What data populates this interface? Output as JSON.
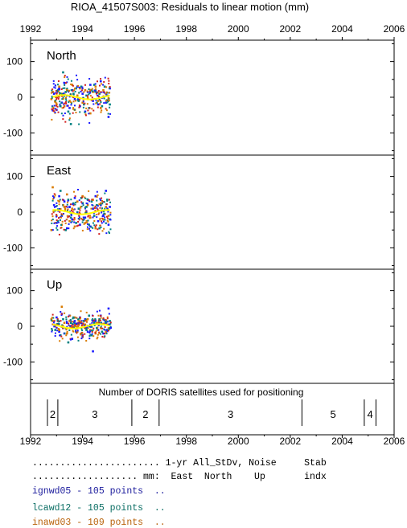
{
  "title": "RIOA_41507S003: Residuals to linear motion (mm)",
  "x_ticks": [
    "1992",
    "1994",
    "1996",
    "1998",
    "2000",
    "2002",
    "2004",
    "2006"
  ],
  "y_ticks": [
    "100",
    "0",
    "-100"
  ],
  "panels": [
    {
      "label": "North"
    },
    {
      "label": "East"
    },
    {
      "label": "Up"
    }
  ],
  "satellite_panel": {
    "title": "Number of DORIS satellites used for positioning",
    "segments": [
      {
        "from": 1992.65,
        "to": 1993.05,
        "count": "2"
      },
      {
        "from": 1993.05,
        "to": 1995.9,
        "count": "3"
      },
      {
        "from": 1995.9,
        "to": 1996.95,
        "count": "2"
      },
      {
        "from": 1996.95,
        "to": 2002.45,
        "count": "3"
      },
      {
        "from": 2002.45,
        "to": 2004.85,
        "count": "5"
      },
      {
        "from": 2004.85,
        "to": 2005.3,
        "count": "4"
      }
    ]
  },
  "legend": {
    "header1": "....................... 1-yr All_StDv, Noise     Stab",
    "header2": "................... mm:  East  North    Up       indx",
    "rows": [
      {
        "text": "ignwd05 - 105 points  ..",
        "color": "#1a1a9c"
      },
      {
        "text": "lcawd12 - 105 points  ..",
        "color": "#0b6e64"
      },
      {
        "text": "inawd03 - 109 points  ..",
        "color": "#b8620a"
      }
    ]
  },
  "colors": {
    "ignwd05": "#1a1aff",
    "lcawd12": "#008080",
    "inawd03": "#d97a00",
    "extra_dots": "#d2201f",
    "smooth_line": "#ffff00"
  },
  "chart_data": {
    "type": "scatter",
    "xlim": [
      1992,
      2006
    ],
    "ylim": [
      -160,
      160
    ],
    "data_span": [
      1992.8,
      1995.1
    ],
    "panels": [
      {
        "name": "North",
        "spread_mm": 25,
        "series": [
          {
            "name": "ignwd05",
            "points": [
              [
                1992.9,
                10
              ],
              [
                1993.0,
                -35
              ],
              [
                1993.1,
                25
              ],
              [
                1993.2,
                -15
              ],
              [
                1993.3,
                40
              ],
              [
                1993.4,
                5
              ],
              [
                1993.5,
                -30
              ],
              [
                1993.6,
                20
              ],
              [
                1993.7,
                -5
              ],
              [
                1993.8,
                30
              ],
              [
                1993.9,
                -25
              ],
              [
                1994.0,
                10
              ],
              [
                1994.1,
                -40
              ],
              [
                1994.2,
                15
              ],
              [
                1994.3,
                35
              ],
              [
                1994.4,
                -10
              ],
              [
                1994.5,
                20
              ],
              [
                1994.6,
                -20
              ],
              [
                1994.7,
                45
              ],
              [
                1994.8,
                0
              ],
              [
                1994.9,
                -15
              ],
              [
                1995.0,
                -55
              ],
              [
                1995.05,
                25
              ]
            ]
          },
          {
            "name": "lcawd12",
            "points": [
              [
                1992.95,
                -10
              ],
              [
                1993.05,
                20
              ],
              [
                1993.15,
                -25
              ],
              [
                1993.25,
                70
              ],
              [
                1993.35,
                15
              ],
              [
                1993.45,
                -40
              ],
              [
                1993.55,
                -75
              ],
              [
                1993.65,
                10
              ],
              [
                1993.75,
                25
              ],
              [
                1993.85,
                -10
              ],
              [
                1993.95,
                30
              ],
              [
                1994.05,
                -20
              ],
              [
                1994.15,
                5
              ],
              [
                1994.25,
                -30
              ],
              [
                1994.35,
                20
              ],
              [
                1994.45,
                35
              ],
              [
                1994.55,
                -15
              ],
              [
                1994.65,
                10
              ],
              [
                1994.75,
                -25
              ],
              [
                1994.85,
                30
              ],
              [
                1994.95,
                5
              ],
              [
                1995.05,
                -20
              ]
            ]
          },
          {
            "name": "inawd03",
            "points": [
              [
                1992.8,
                -5
              ],
              [
                1992.85,
                15
              ],
              [
                1993.0,
                -20
              ],
              [
                1993.1,
                30
              ],
              [
                1993.2,
                10
              ],
              [
                1993.3,
                -25
              ],
              [
                1993.4,
                20
              ],
              [
                1993.5,
                -10
              ],
              [
                1993.6,
                35
              ],
              [
                1993.7,
                -35
              ],
              [
                1993.8,
                5
              ],
              [
                1993.9,
                25
              ],
              [
                1994.0,
                -15
              ],
              [
                1994.1,
                20
              ],
              [
                1994.2,
                -5
              ],
              [
                1994.3,
                -45
              ],
              [
                1994.4,
                15
              ],
              [
                1994.5,
                30
              ],
              [
                1994.6,
                -10
              ],
              [
                1994.7,
                -30
              ],
              [
                1994.8,
                20
              ],
              [
                1994.9,
                10
              ],
              [
                1995.0,
                -5
              ]
            ]
          }
        ]
      },
      {
        "name": "East",
        "spread_mm": 28,
        "series": [
          {
            "name": "ignwd05",
            "points": [
              [
                1992.9,
                20
              ],
              [
                1993.0,
                -30
              ],
              [
                1993.1,
                45
              ],
              [
                1993.2,
                -10
              ],
              [
                1993.3,
                30
              ],
              [
                1993.4,
                -45
              ],
              [
                1993.5,
                15
              ],
              [
                1993.6,
                -20
              ],
              [
                1993.7,
                40
              ],
              [
                1993.8,
                0
              ],
              [
                1993.9,
                -35
              ],
              [
                1994.0,
                25
              ],
              [
                1994.1,
                -15
              ],
              [
                1994.2,
                35
              ],
              [
                1994.3,
                -40
              ],
              [
                1994.4,
                10
              ],
              [
                1994.5,
                45
              ],
              [
                1994.6,
                -25
              ],
              [
                1994.7,
                20
              ],
              [
                1994.8,
                -10
              ],
              [
                1994.9,
                60
              ],
              [
                1995.0,
                -35
              ],
              [
                1995.05,
                15
              ]
            ]
          },
          {
            "name": "lcawd12",
            "points": [
              [
                1992.95,
                5
              ],
              [
                1993.05,
                -25
              ],
              [
                1993.15,
                60
              ],
              [
                1993.25,
                20
              ],
              [
                1993.35,
                -50
              ],
              [
                1993.45,
                35
              ],
              [
                1993.55,
                -15
              ],
              [
                1993.65,
                25
              ],
              [
                1993.75,
                -30
              ],
              [
                1993.85,
                10
              ],
              [
                1993.95,
                40
              ],
              [
                1994.05,
                -20
              ],
              [
                1994.15,
                15
              ],
              [
                1994.25,
                -35
              ],
              [
                1994.35,
                30
              ],
              [
                1994.45,
                -10
              ],
              [
                1994.55,
                20
              ],
              [
                1994.65,
                -45
              ],
              [
                1994.75,
                25
              ],
              [
                1994.85,
                -5
              ],
              [
                1994.95,
                35
              ],
              [
                1995.05,
                -20
              ]
            ]
          },
          {
            "name": "inawd03",
            "points": [
              [
                1992.8,
                -50
              ],
              [
                1992.85,
                70
              ],
              [
                1993.0,
                -10
              ],
              [
                1993.1,
                30
              ],
              [
                1993.2,
                -35
              ],
              [
                1993.3,
                15
              ],
              [
                1993.4,
                50
              ],
              [
                1993.5,
                -25
              ],
              [
                1993.6,
                10
              ],
              [
                1993.7,
                -40
              ],
              [
                1993.8,
                30
              ],
              [
                1993.9,
                -5
              ],
              [
                1994.0,
                45
              ],
              [
                1994.1,
                -30
              ],
              [
                1994.2,
                20
              ],
              [
                1994.3,
                -15
              ],
              [
                1994.4,
                35
              ],
              [
                1994.5,
                -45
              ],
              [
                1994.6,
                5
              ],
              [
                1994.7,
                25
              ],
              [
                1994.8,
                -20
              ],
              [
                1994.9,
                15
              ],
              [
                1995.0,
                -10
              ]
            ]
          }
        ]
      },
      {
        "name": "Up",
        "spread_mm": 18,
        "series": [
          {
            "name": "ignwd05",
            "points": [
              [
                1992.9,
                5
              ],
              [
                1993.0,
                25
              ],
              [
                1993.1,
                -15
              ],
              [
                1993.2,
                35
              ],
              [
                1993.3,
                -20
              ],
              [
                1993.4,
                10
              ],
              [
                1993.5,
                30
              ],
              [
                1993.6,
                -35
              ],
              [
                1993.7,
                15
              ],
              [
                1993.8,
                -5
              ],
              [
                1993.9,
                25
              ],
              [
                1994.0,
                -25
              ],
              [
                1994.1,
                20
              ],
              [
                1994.2,
                -15
              ],
              [
                1994.3,
                5
              ],
              [
                1994.4,
                -70
              ],
              [
                1994.5,
                15
              ],
              [
                1994.6,
                -10
              ],
              [
                1994.7,
                30
              ],
              [
                1994.8,
                -20
              ],
              [
                1994.9,
                10
              ],
              [
                1995.0,
                50
              ],
              [
                1995.05,
                -5
              ]
            ]
          },
          {
            "name": "lcawd12",
            "points": [
              [
                1992.95,
                -10
              ],
              [
                1993.05,
                15
              ],
              [
                1993.15,
                -25
              ],
              [
                1993.25,
                20
              ],
              [
                1993.35,
                -5
              ],
              [
                1993.45,
                -45
              ],
              [
                1993.55,
                10
              ],
              [
                1993.65,
                25
              ],
              [
                1993.75,
                -15
              ],
              [
                1993.85,
                5
              ],
              [
                1993.95,
                -20
              ],
              [
                1994.05,
                15
              ],
              [
                1994.15,
                -10
              ],
              [
                1994.25,
                30
              ],
              [
                1994.35,
                -25
              ],
              [
                1994.45,
                10
              ],
              [
                1994.55,
                -5
              ],
              [
                1994.65,
                20
              ],
              [
                1994.75,
                -15
              ],
              [
                1994.85,
                5
              ],
              [
                1994.95,
                -10
              ],
              [
                1995.05,
                15
              ]
            ]
          },
          {
            "name": "inawd03",
            "points": [
              [
                1992.8,
                20
              ],
              [
                1992.85,
                15
              ],
              [
                1993.0,
                5
              ],
              [
                1993.1,
                -10
              ],
              [
                1993.2,
                55
              ],
              [
                1993.3,
                10
              ],
              [
                1993.4,
                -20
              ],
              [
                1993.5,
                15
              ],
              [
                1993.6,
                -5
              ],
              [
                1993.7,
                25
              ],
              [
                1993.8,
                -15
              ],
              [
                1993.9,
                10
              ],
              [
                1994.0,
                -30
              ],
              [
                1994.1,
                5
              ],
              [
                1994.2,
                20
              ],
              [
                1994.3,
                -10
              ],
              [
                1994.4,
                15
              ],
              [
                1994.5,
                -20
              ],
              [
                1994.6,
                10
              ],
              [
                1994.7,
                -5
              ],
              [
                1994.8,
                20
              ],
              [
                1994.9,
                -15
              ],
              [
                1995.0,
                5
              ]
            ]
          }
        ]
      }
    ]
  }
}
